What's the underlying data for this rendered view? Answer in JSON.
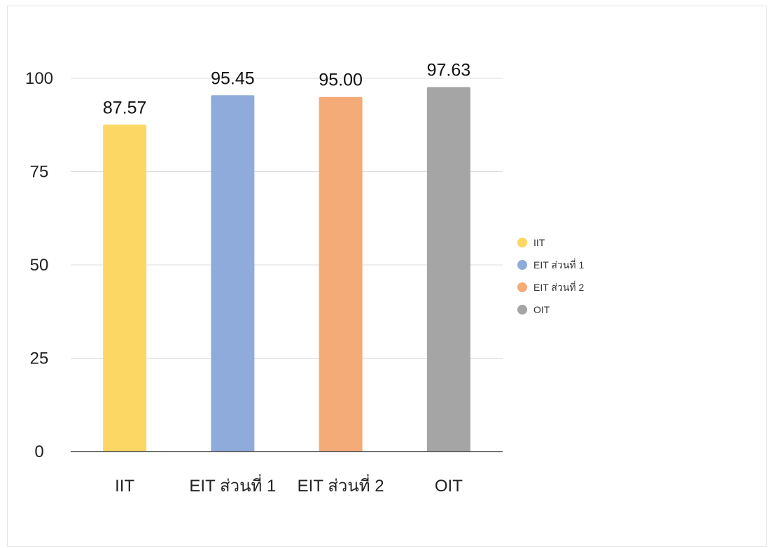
{
  "chart_data": {
    "type": "bar",
    "categories": [
      "IIT",
      "EIT ส่วนที่ 1",
      "EIT ส่วนที่ 2",
      "OIT"
    ],
    "values": [
      87.57,
      95.45,
      95.0,
      97.63
    ],
    "value_labels": [
      "87.57",
      "95.45",
      "95.00",
      "97.63"
    ],
    "colors": [
      "#fdd764",
      "#8fabdc",
      "#f4ab78",
      "#a5a5a5"
    ],
    "ylim": [
      0,
      100
    ],
    "yticks": [
      0,
      25,
      50,
      75,
      100
    ],
    "grid": true,
    "legend": {
      "placement": "right",
      "items": [
        "IIT",
        "EIT ส่วนที่ 1",
        "EIT ส่วนที่ 2",
        "OIT"
      ]
    },
    "title": "",
    "xlabel": "",
    "ylabel": ""
  }
}
